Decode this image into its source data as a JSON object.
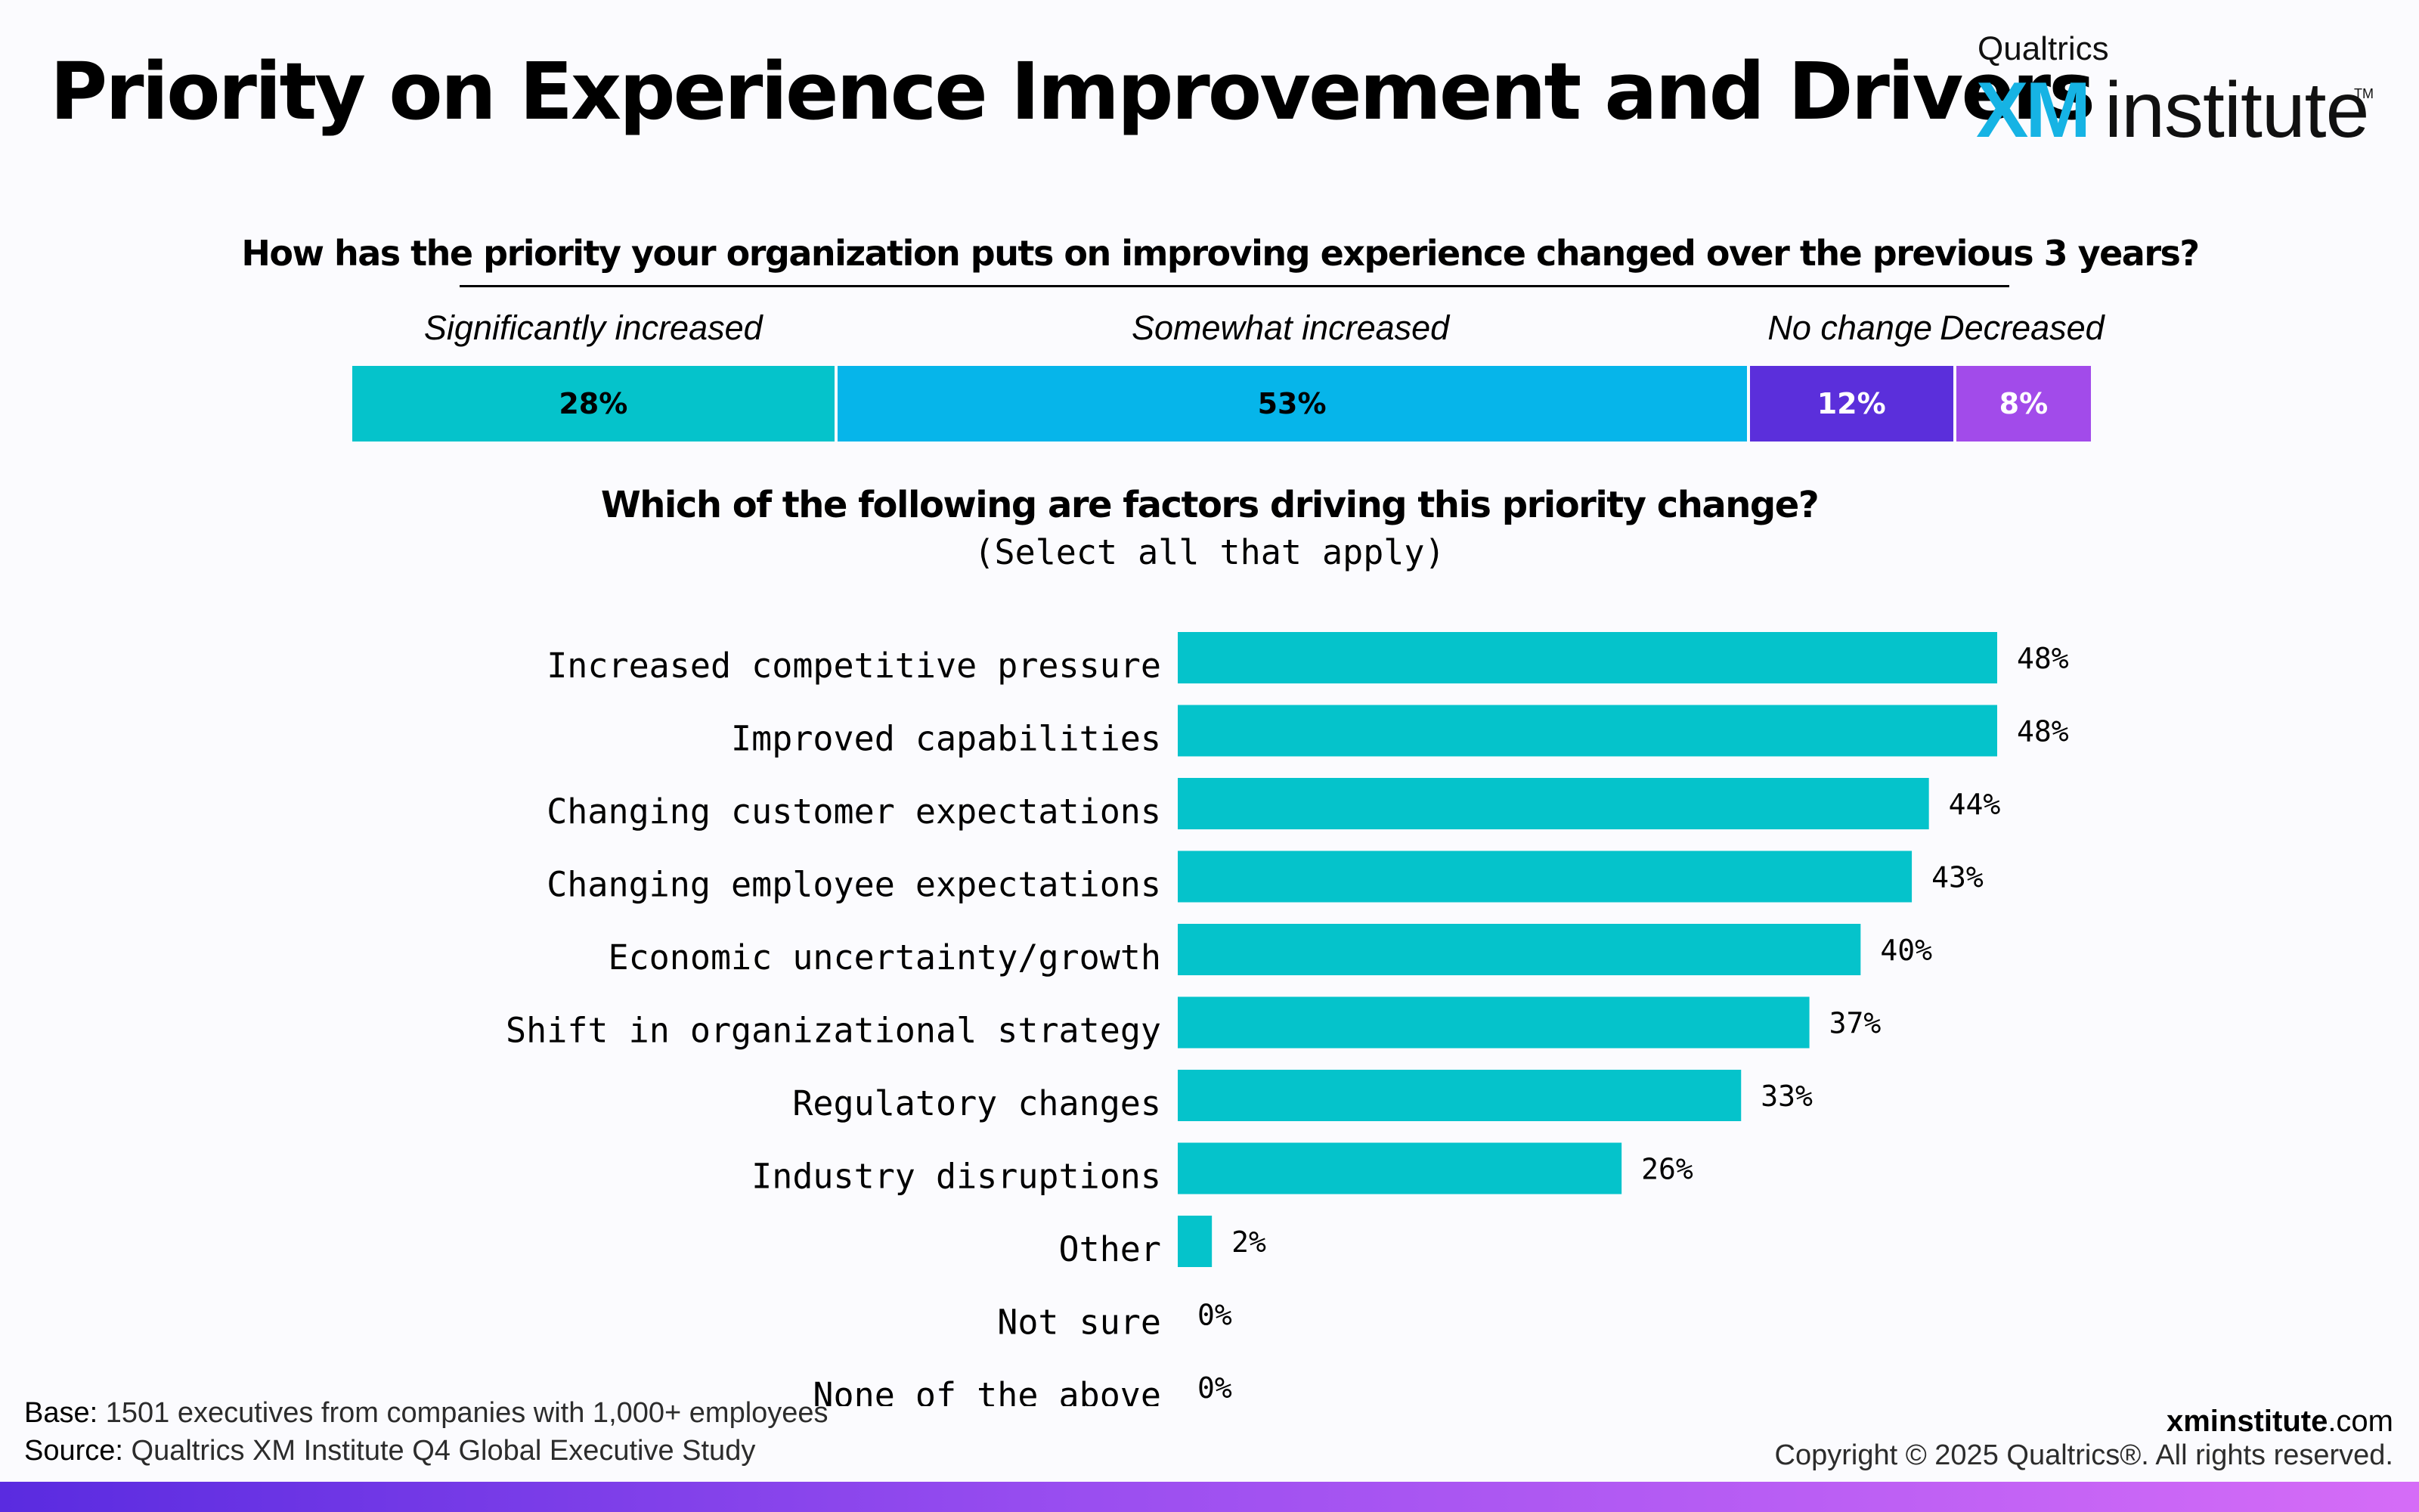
{
  "title": "Priority on Experience Improvement and Drivers",
  "logo": {
    "brand": "Qualtrics",
    "mark": "XM",
    "name": "institute",
    "tm": "TM"
  },
  "question1": "How has the priority your organization puts on improving experience changed over the previous 3 years?",
  "question2": "Which of the following are factors driving this priority change?",
  "question2_note": "(Select all that apply)",
  "footer": {
    "base_label": "Base:",
    "base_text": "1501 executives from companies with 1,000+ employees",
    "source_label": "Source:",
    "source_text": "Qualtrics XM Institute Q4 Global Executive Study",
    "site_bold": "xminstitute",
    "site_rest": ".com",
    "copyright": "Copyright © 2025 Qualtrics®. All rights reserved."
  },
  "chart_data": [
    {
      "type": "bar",
      "orientation": "horizontal-stacked",
      "categories": [
        "Significantly increased",
        "Somewhat increased",
        "No change",
        "Decreased"
      ],
      "values": [
        28,
        53,
        12,
        8
      ],
      "value_labels": [
        "28%",
        "53%",
        "12%",
        "8%"
      ],
      "colors": [
        "#05c3cb",
        "#06b5ea",
        "#5b2fdb",
        "#a24bea"
      ],
      "label_colors": [
        "#000000",
        "#000000",
        "#ffffff",
        "#ffffff"
      ]
    },
    {
      "type": "bar",
      "orientation": "horizontal",
      "categories": [
        "Increased competitive pressure",
        "Improved capabilities",
        "Changing customer expectations",
        "Changing employee expectations",
        "Economic uncertainty/growth",
        "Shift in organizational strategy",
        "Regulatory changes",
        "Industry disruptions",
        "Other",
        "Not sure",
        "None of the above"
      ],
      "values": [
        48,
        48,
        44,
        43,
        40,
        37,
        33,
        26,
        2,
        0,
        0
      ],
      "value_labels": [
        "48%",
        "48%",
        "44%",
        "43%",
        "40%",
        "37%",
        "33%",
        "26%",
        "2%",
        "0%",
        "0%"
      ],
      "color": "#05c3cb"
    }
  ]
}
